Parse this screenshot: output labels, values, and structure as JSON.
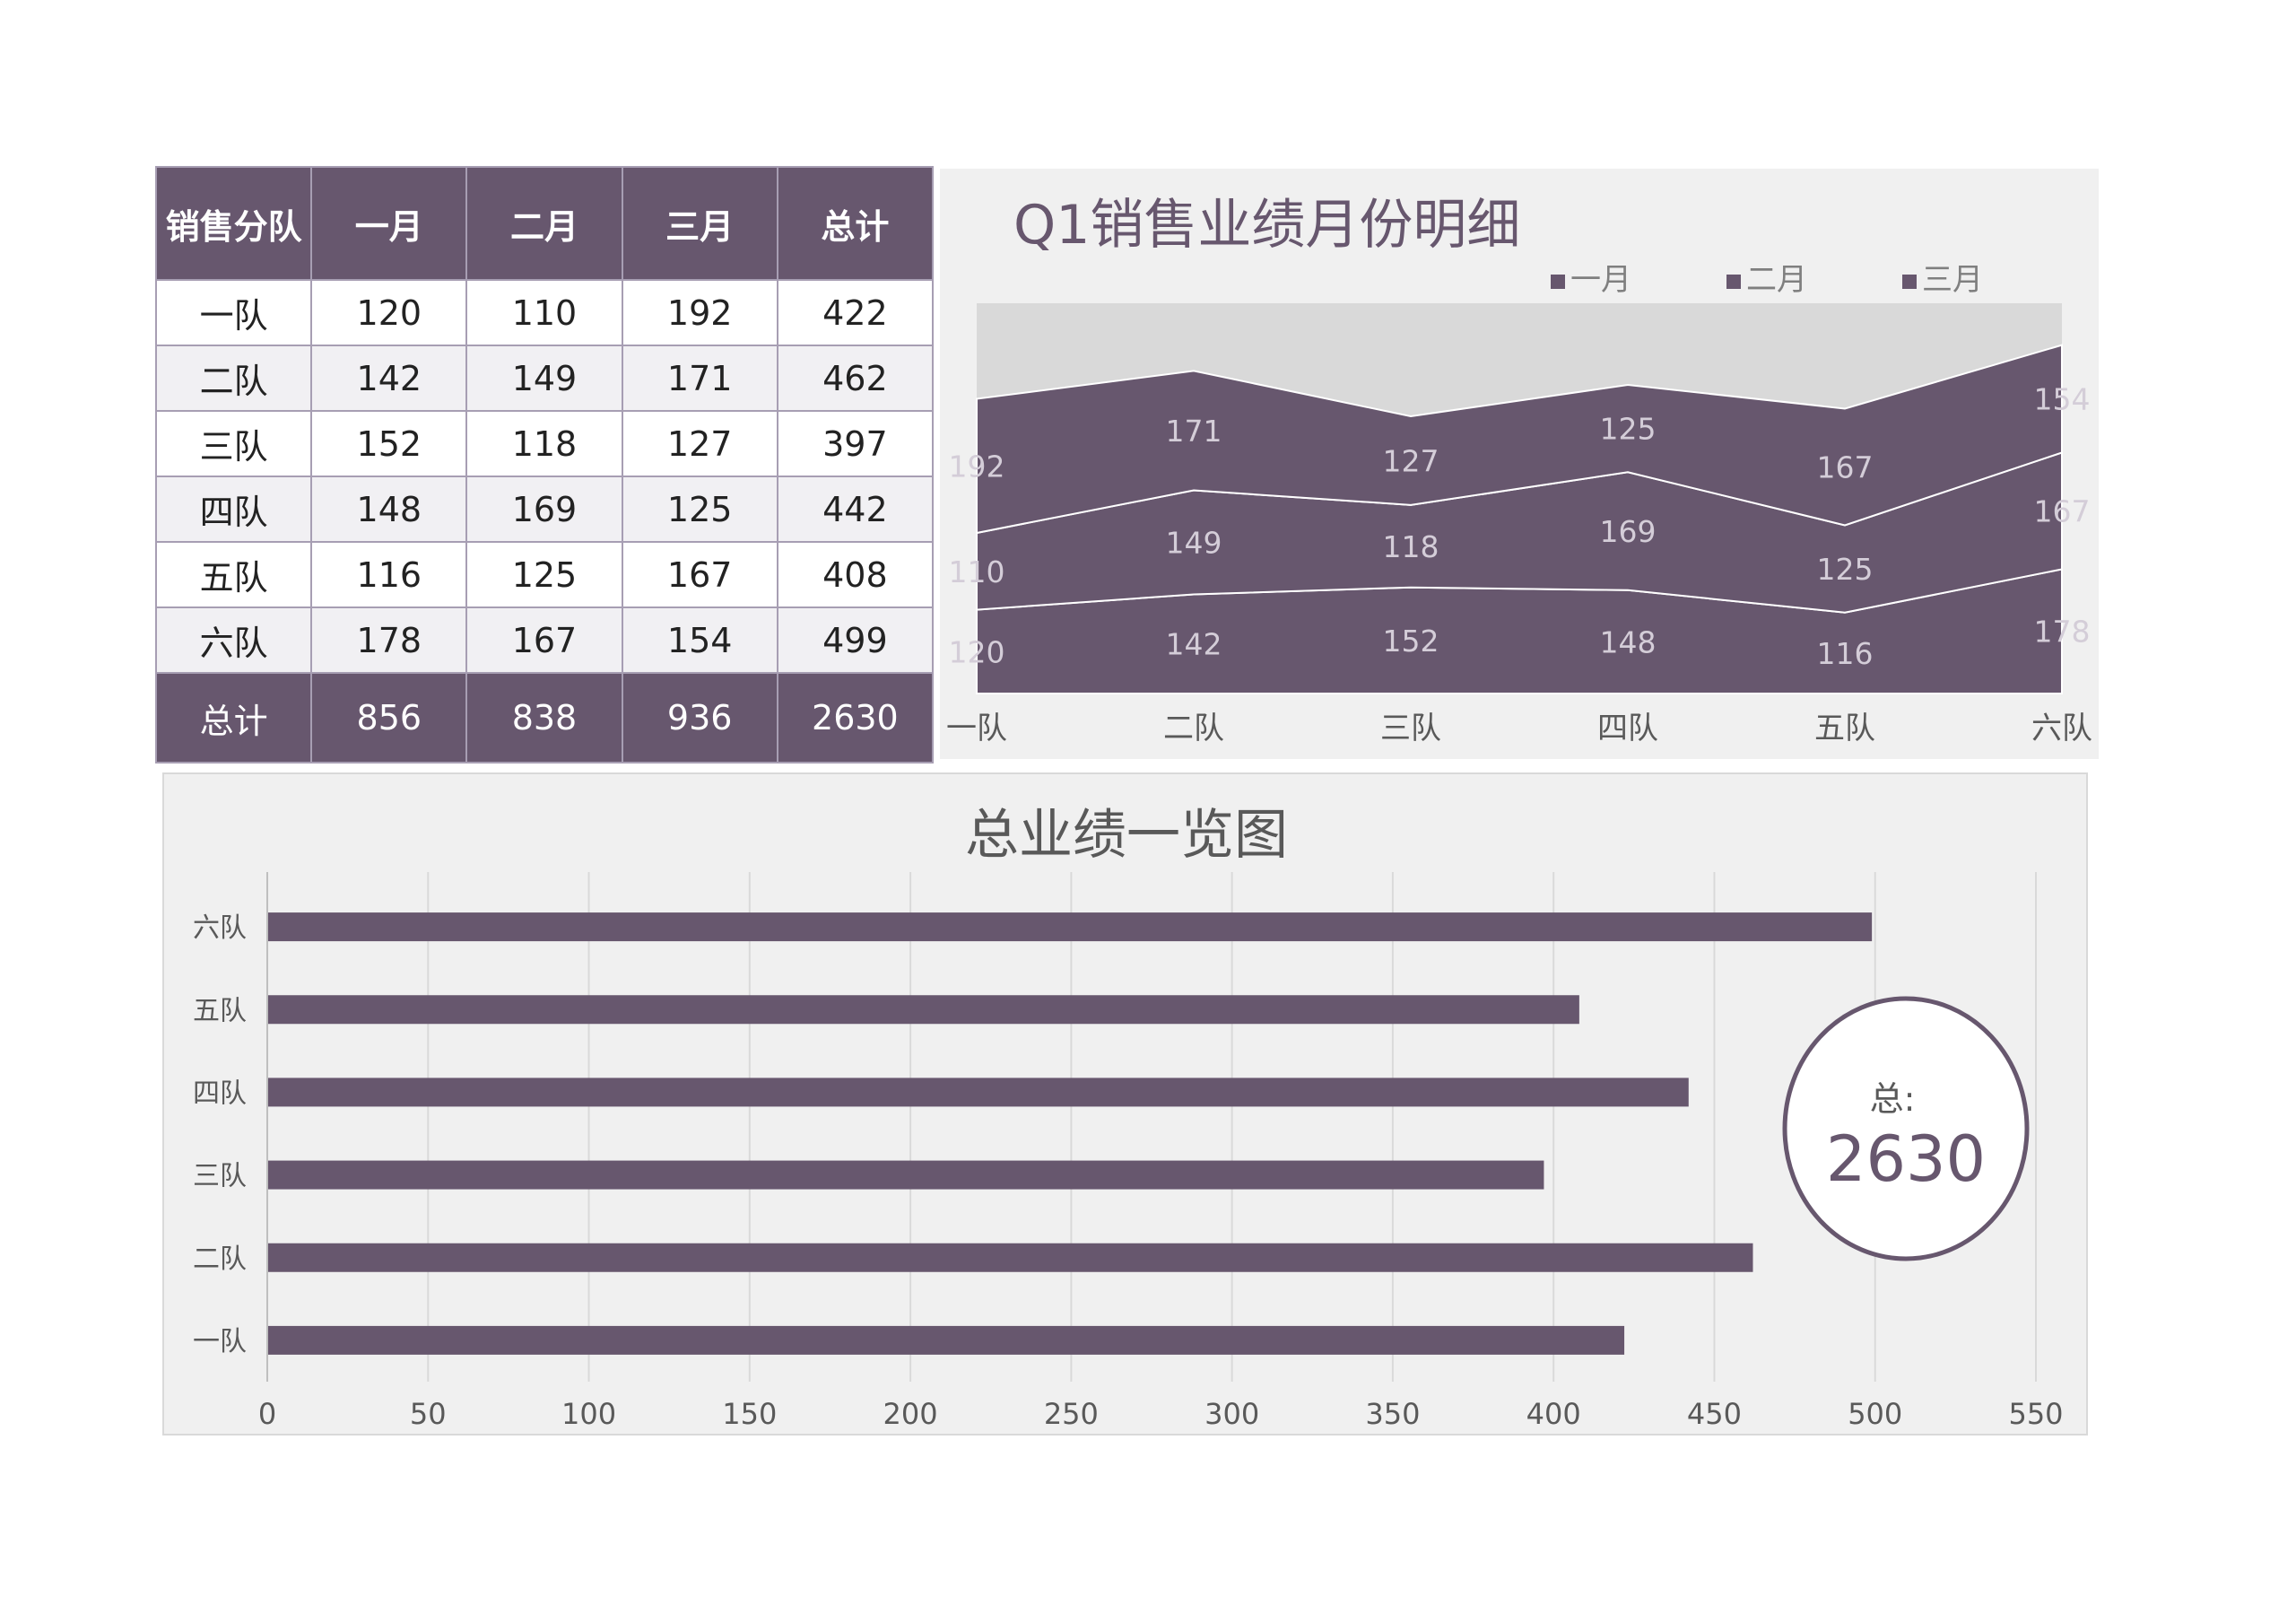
{
  "table": {
    "headers": [
      "销售分队",
      "一月",
      "二月",
      "三月",
      "总计"
    ],
    "rows": [
      [
        "一队",
        "120",
        "110",
        "192",
        "422"
      ],
      [
        "二队",
        "142",
        "149",
        "171",
        "462"
      ],
      [
        "三队",
        "152",
        "118",
        "127",
        "397"
      ],
      [
        "四队",
        "148",
        "169",
        "125",
        "442"
      ],
      [
        "五队",
        "116",
        "125",
        "167",
        "408"
      ],
      [
        "六队",
        "178",
        "167",
        "154",
        "499"
      ]
    ],
    "footer": [
      "总计",
      "856",
      "838",
      "936",
      "2630"
    ]
  },
  "colors": {
    "accent": "#67576e",
    "panel": "#f0f0f0",
    "top_area": "#d9d9d9"
  },
  "chart_data": [
    {
      "type": "area",
      "title": "Q1销售业绩月份明细",
      "categories": [
        "一队",
        "二队",
        "三队",
        "四队",
        "五队",
        "六队"
      ],
      "series": [
        {
          "name": "一月",
          "values": [
            120,
            142,
            152,
            148,
            116,
            178
          ]
        },
        {
          "name": "二月",
          "values": [
            110,
            149,
            118,
            169,
            125,
            167
          ]
        },
        {
          "name": "三月",
          "values": [
            192,
            171,
            127,
            125,
            167,
            154
          ]
        }
      ],
      "stacked": true,
      "legend": "top-right",
      "data_labels": true
    },
    {
      "type": "bar",
      "orientation": "horizontal",
      "title": "总业绩一览图",
      "categories": [
        "一队",
        "二队",
        "三队",
        "四队",
        "五队",
        "六队"
      ],
      "values": [
        422,
        462,
        397,
        442,
        408,
        499
      ],
      "xlim": [
        0,
        550
      ],
      "xticks": [
        0,
        50,
        100,
        150,
        200,
        250,
        300,
        350,
        400,
        450,
        500,
        550
      ],
      "grid": true,
      "annotation": {
        "label": "总:",
        "value": "2630"
      }
    }
  ]
}
